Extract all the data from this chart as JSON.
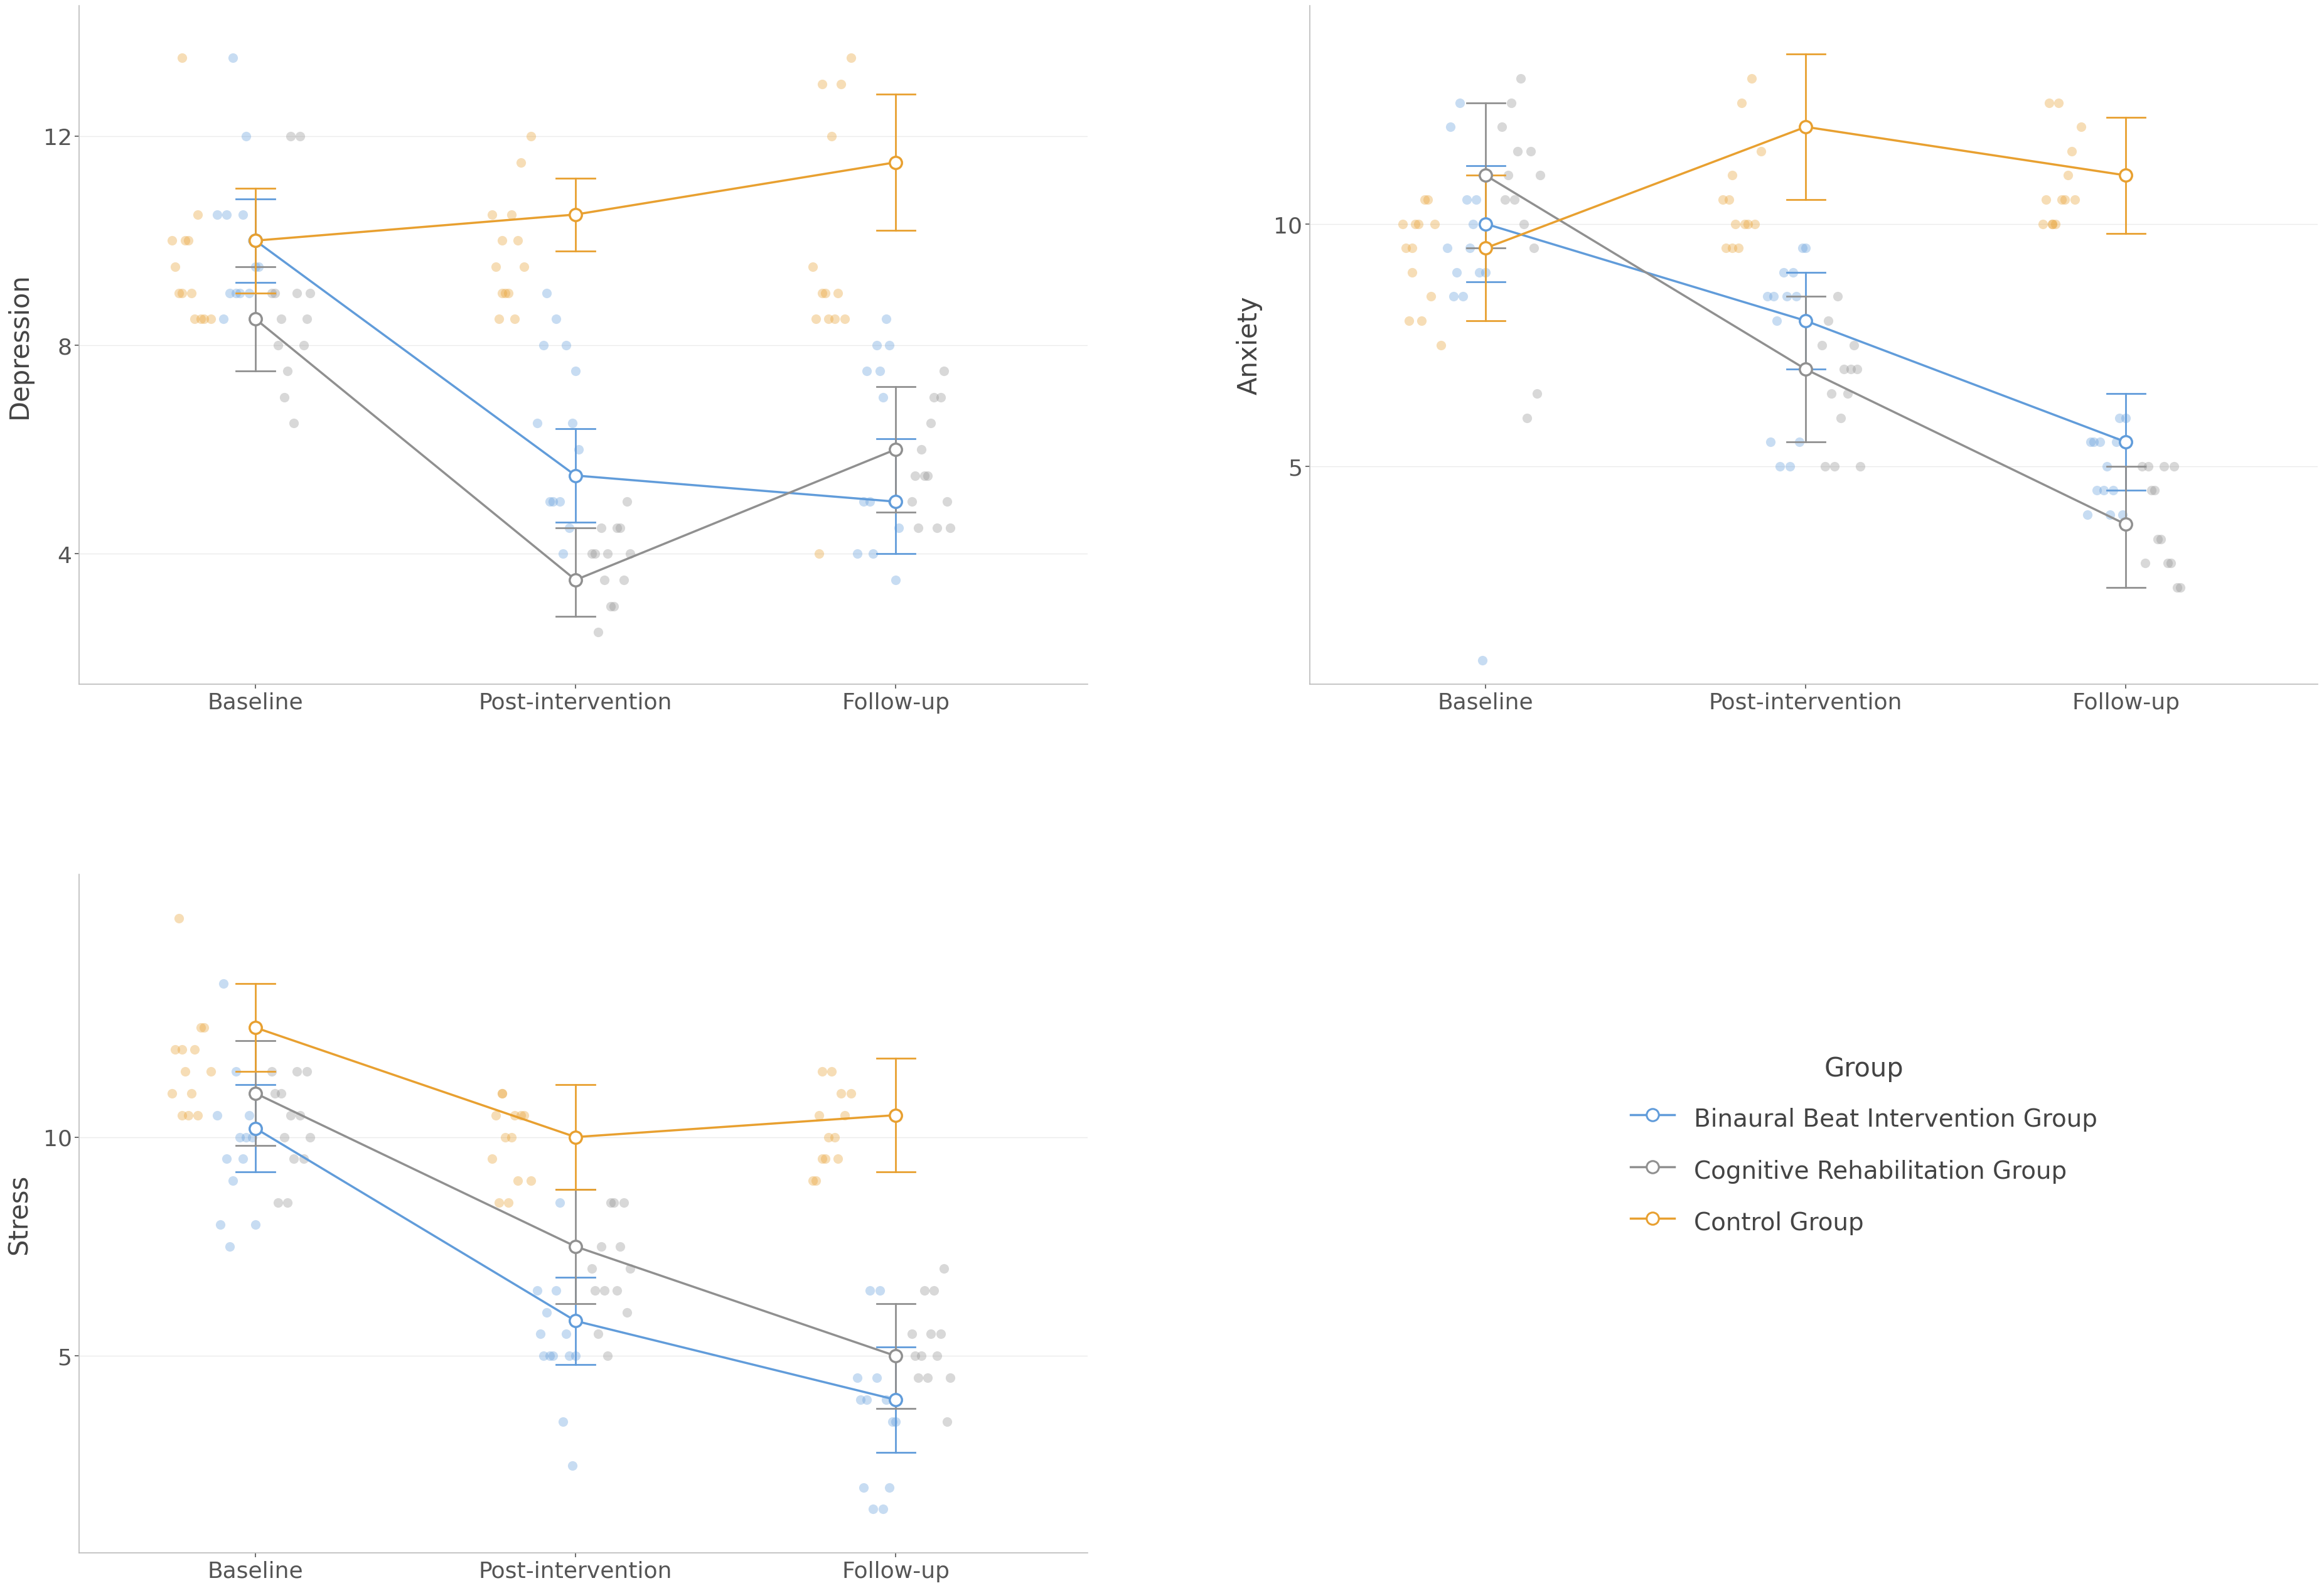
{
  "subplots": [
    {
      "title": "Depression",
      "ylabel": "Depression",
      "ylim": [
        1.5,
        14.5
      ],
      "yticks": [
        4,
        8,
        12
      ],
      "groups": {
        "blue": {
          "means": [
            10.0,
            5.5,
            5.0
          ],
          "ci_low": [
            9.2,
            4.6,
            4.0
          ],
          "ci_high": [
            10.8,
            6.4,
            6.2
          ],
          "jitter_x": [
            [
              0.88,
              0.92,
              0.95,
              0.98,
              1.01,
              0.9,
              0.94,
              0.97,
              1.0,
              0.91,
              0.96,
              0.93,
              0.99
            ],
            [
              1.88,
              1.92,
              1.95,
              1.98,
              2.01,
              1.9,
              1.94,
              1.97,
              2.0,
              1.91,
              1.96,
              1.93,
              1.99
            ],
            [
              2.88,
              2.92,
              2.95,
              2.98,
              3.01,
              2.9,
              2.94,
              2.97,
              3.0,
              2.91,
              2.96,
              2.93,
              2.99
            ]
          ],
          "jitter_y": [
            [
              10.5,
              9.0,
              9.0,
              9.0,
              9.5,
              8.5,
              9.0,
              12.0,
              9.5,
              10.5,
              10.5,
              13.5,
              10.0
            ],
            [
              6.5,
              5.0,
              5.0,
              4.5,
              6.0,
              8.0,
              8.5,
              8.0,
              7.5,
              9.0,
              4.0,
              5.0,
              6.5
            ],
            [
              4.0,
              5.0,
              7.5,
              8.0,
              4.5,
              5.0,
              8.0,
              8.5,
              3.5,
              7.5,
              7.0,
              4.0,
              5.0
            ]
          ]
        },
        "gray": {
          "means": [
            8.5,
            3.5,
            6.0
          ],
          "ci_low": [
            7.5,
            2.8,
            4.8
          ],
          "ci_high": [
            9.5,
            4.5,
            7.2
          ],
          "jitter_x": [
            [
              1.05,
              1.08,
              1.11,
              1.14,
              1.17,
              1.06,
              1.09,
              1.12,
              1.15,
              1.07,
              1.1,
              1.13,
              1.16
            ],
            [
              2.05,
              2.08,
              2.11,
              2.14,
              2.17,
              2.06,
              2.09,
              2.12,
              2.15,
              2.07,
              2.1,
              2.13,
              2.16
            ],
            [
              3.05,
              3.08,
              3.11,
              3.14,
              3.17,
              3.06,
              3.09,
              3.12,
              3.15,
              3.07,
              3.1,
              3.13,
              3.16
            ]
          ],
          "jitter_y": [
            [
              9.0,
              8.5,
              12.0,
              12.0,
              9.0,
              9.0,
              7.0,
              6.5,
              8.0,
              8.0,
              7.5,
              9.0,
              8.5
            ],
            [
              4.0,
              4.5,
              3.0,
              4.5,
              4.0,
              4.0,
              3.5,
              3.0,
              3.5,
              2.5,
              4.0,
              4.5,
              5.0
            ],
            [
              5.0,
              6.0,
              6.5,
              7.0,
              4.5,
              5.5,
              5.5,
              7.0,
              7.5,
              4.5,
              5.5,
              4.5,
              5.0
            ]
          ]
        },
        "orange": {
          "means": [
            10.0,
            10.5,
            11.5
          ],
          "ci_low": [
            9.0,
            9.8,
            10.2
          ],
          "ci_high": [
            11.0,
            11.2,
            12.8
          ],
          "jitter_x": [
            [
              0.75,
              0.78,
              0.81,
              0.84,
              0.77,
              0.8,
              0.83,
              0.86,
              0.76,
              0.79,
              0.82,
              0.74,
              0.77
            ],
            [
              1.75,
              1.78,
              1.81,
              1.84,
              1.77,
              1.8,
              1.83,
              1.86,
              1.76,
              1.79,
              1.82,
              1.74,
              1.77
            ],
            [
              2.75,
              2.78,
              2.81,
              2.84,
              2.77,
              2.8,
              2.83,
              2.86,
              2.76,
              2.79,
              2.82,
              2.74,
              2.77
            ]
          ],
          "jitter_y": [
            [
              9.5,
              10.0,
              8.5,
              8.5,
              9.0,
              9.0,
              8.5,
              8.5,
              9.0,
              10.0,
              10.5,
              10.0,
              13.5
            ],
            [
              9.5,
              9.0,
              8.5,
              9.5,
              10.0,
              10.5,
              11.5,
              12.0,
              8.5,
              9.0,
              10.0,
              10.5,
              9.0
            ],
            [
              8.5,
              9.0,
              8.5,
              8.5,
              9.0,
              12.0,
              13.0,
              13.5,
              4.0,
              8.5,
              9.0,
              9.5,
              13.0
            ]
          ]
        }
      }
    },
    {
      "title": "Anxiety",
      "ylabel": "Anxiety",
      "ylim": [
        0.5,
        14.5
      ],
      "yticks": [
        5,
        10
      ],
      "groups": {
        "blue": {
          "means": [
            10.0,
            8.0,
            5.5
          ],
          "ci_low": [
            8.8,
            7.0,
            4.5
          ],
          "ci_high": [
            11.2,
            9.0,
            6.5
          ],
          "jitter_x": [
            [
              0.88,
              0.91,
              0.94,
              0.97,
              1.0,
              0.89,
              0.92,
              0.95,
              0.98,
              0.9,
              0.93,
              0.96,
              0.99
            ],
            [
              1.88,
              1.91,
              1.94,
              1.97,
              2.0,
              1.89,
              1.92,
              1.95,
              1.98,
              1.9,
              1.93,
              1.96,
              1.99
            ],
            [
              2.88,
              2.91,
              2.94,
              2.97,
              3.0,
              2.89,
              2.92,
              2.95,
              2.98,
              2.9,
              2.93,
              2.96,
              2.99
            ]
          ],
          "jitter_y": [
            [
              9.5,
              9.0,
              10.5,
              10.5,
              9.0,
              12.0,
              12.5,
              9.5,
              9.0,
              8.5,
              8.5,
              10.0,
              1.0
            ],
            [
              8.5,
              8.0,
              8.5,
              8.5,
              9.5,
              5.5,
              5.0,
              5.0,
              5.5,
              8.5,
              9.0,
              9.0,
              9.5
            ],
            [
              4.0,
              4.5,
              5.0,
              5.5,
              6.0,
              5.5,
              5.5,
              4.0,
              6.0,
              5.5,
              4.5,
              4.5,
              4.0
            ]
          ]
        },
        "gray": {
          "means": [
            11.0,
            7.0,
            3.8
          ],
          "ci_low": [
            9.5,
            5.5,
            2.5
          ],
          "ci_high": [
            12.5,
            8.5,
            5.0
          ],
          "jitter_x": [
            [
              1.05,
              1.08,
              1.11,
              1.14,
              1.17,
              1.06,
              1.09,
              1.12,
              1.15,
              1.07,
              1.1,
              1.13,
              1.16
            ],
            [
              2.05,
              2.08,
              2.11,
              2.14,
              2.17,
              2.06,
              2.09,
              2.12,
              2.15,
              2.07,
              2.1,
              2.13,
              2.16
            ],
            [
              3.05,
              3.08,
              3.11,
              3.14,
              3.17,
              3.06,
              3.09,
              3.12,
              3.15,
              3.07,
              3.1,
              3.13,
              3.16
            ]
          ],
          "jitter_y": [
            [
              12.0,
              12.5,
              13.0,
              11.5,
              11.0,
              10.5,
              10.5,
              10.0,
              9.5,
              11.0,
              11.5,
              6.0,
              6.5
            ],
            [
              7.5,
              6.5,
              6.0,
              7.0,
              5.0,
              5.0,
              5.0,
              7.0,
              7.5,
              8.0,
              8.5,
              6.5,
              7.0
            ],
            [
              5.0,
              4.5,
              3.5,
              3.0,
              2.5,
              3.0,
              4.5,
              5.0,
              5.0,
              5.0,
              3.5,
              3.0,
              2.5
            ]
          ]
        },
        "orange": {
          "means": [
            9.5,
            12.0,
            11.0
          ],
          "ci_low": [
            8.0,
            10.5,
            9.8
          ],
          "ci_high": [
            11.0,
            13.5,
            12.2
          ],
          "jitter_x": [
            [
              0.75,
              0.78,
              0.81,
              0.84,
              0.77,
              0.8,
              0.83,
              0.86,
              0.76,
              0.79,
              0.82,
              0.74,
              0.77
            ],
            [
              1.75,
              1.78,
              1.81,
              1.84,
              1.77,
              1.8,
              1.83,
              1.86,
              1.76,
              1.79,
              1.82,
              1.74,
              1.77
            ],
            [
              2.75,
              2.78,
              2.81,
              2.84,
              2.77,
              2.8,
              2.83,
              2.86,
              2.76,
              2.79,
              2.82,
              2.74,
              2.77
            ]
          ],
          "jitter_y": [
            [
              9.5,
              10.0,
              10.5,
              10.0,
              9.5,
              8.0,
              8.5,
              7.5,
              8.0,
              10.0,
              10.5,
              10.0,
              9.0
            ],
            [
              9.5,
              10.0,
              10.0,
              10.0,
              11.0,
              12.5,
              13.0,
              11.5,
              10.5,
              9.5,
              10.0,
              10.5,
              9.5
            ],
            [
              10.5,
              10.0,
              10.5,
              10.5,
              10.0,
              10.5,
              11.5,
              12.0,
              12.5,
              12.5,
              11.0,
              10.0,
              10.0
            ]
          ]
        }
      }
    },
    {
      "title": "Stress",
      "ylabel": "Stress",
      "ylim": [
        0.5,
        16.0
      ],
      "yticks": [
        5,
        10
      ],
      "groups": {
        "blue": {
          "means": [
            10.2,
            5.8,
            4.0
          ],
          "ci_low": [
            9.2,
            4.8,
            2.8
          ],
          "ci_high": [
            11.2,
            6.8,
            5.2
          ],
          "jitter_x": [
            [
              0.88,
              0.91,
              0.94,
              0.97,
              1.0,
              0.89,
              0.92,
              0.95,
              0.98,
              0.9,
              0.93,
              0.96,
              0.99
            ],
            [
              1.88,
              1.91,
              1.94,
              1.97,
              2.0,
              1.89,
              1.92,
              1.95,
              1.98,
              1.9,
              1.93,
              1.96,
              1.99
            ],
            [
              2.88,
              2.91,
              2.94,
              2.97,
              3.0,
              2.89,
              2.92,
              2.95,
              2.98,
              2.9,
              2.93,
              2.96,
              2.99
            ]
          ],
          "jitter_y": [
            [
              10.5,
              9.5,
              11.5,
              10.0,
              8.0,
              8.0,
              7.5,
              10.0,
              10.5,
              13.5,
              9.0,
              9.5,
              10.0
            ],
            [
              6.5,
              6.0,
              6.5,
              5.5,
              5.0,
              5.5,
              5.0,
              8.5,
              5.0,
              5.0,
              5.0,
              3.5,
              2.5
            ],
            [
              4.5,
              4.0,
              4.5,
              4.0,
              3.5,
              4.0,
              6.5,
              6.5,
              2.0,
              2.0,
              1.5,
              1.5,
              3.5
            ]
          ]
        },
        "gray": {
          "means": [
            11.0,
            7.5,
            5.0
          ],
          "ci_low": [
            9.8,
            6.2,
            3.8
          ],
          "ci_high": [
            12.2,
            8.8,
            6.2
          ],
          "jitter_x": [
            [
              1.05,
              1.08,
              1.11,
              1.14,
              1.17,
              1.06,
              1.09,
              1.12,
              1.15,
              1.07,
              1.1,
              1.13,
              1.16
            ],
            [
              2.05,
              2.08,
              2.11,
              2.14,
              2.17,
              2.06,
              2.09,
              2.12,
              2.15,
              2.07,
              2.1,
              2.13,
              2.16
            ],
            [
              3.05,
              3.08,
              3.11,
              3.14,
              3.17,
              3.06,
              3.09,
              3.12,
              3.15,
              3.07,
              3.1,
              3.13,
              3.16
            ]
          ],
          "jitter_y": [
            [
              11.5,
              11.0,
              10.5,
              10.5,
              10.0,
              11.0,
              10.0,
              9.5,
              9.5,
              8.5,
              8.5,
              11.5,
              11.5
            ],
            [
              7.0,
              7.5,
              8.5,
              7.5,
              7.0,
              6.5,
              6.5,
              8.5,
              8.5,
              5.5,
              5.0,
              6.5,
              6.0
            ],
            [
              5.5,
              5.0,
              5.5,
              5.5,
              4.5,
              5.0,
              6.5,
              6.5,
              7.0,
              4.5,
              4.5,
              5.0,
              3.5
            ]
          ]
        },
        "orange": {
          "means": [
            12.5,
            10.0,
            10.5
          ],
          "ci_low": [
            11.5,
            8.8,
            9.2
          ],
          "ci_high": [
            13.5,
            11.2,
            11.8
          ],
          "jitter_x": [
            [
              0.75,
              0.78,
              0.81,
              0.84,
              0.77,
              0.8,
              0.83,
              0.86,
              0.76,
              0.79,
              0.82,
              0.74,
              0.77
            ],
            [
              1.75,
              1.78,
              1.81,
              1.84,
              1.77,
              1.8,
              1.83,
              1.86,
              1.76,
              1.79,
              1.82,
              1.74,
              1.77
            ],
            [
              2.75,
              2.78,
              2.81,
              2.84,
              2.77,
              2.8,
              2.83,
              2.86,
              2.76,
              2.79,
              2.82,
              2.74,
              2.77
            ]
          ],
          "jitter_y": [
            [
              12.0,
              11.5,
              12.0,
              12.5,
              10.5,
              11.0,
              12.5,
              11.5,
              15.0,
              10.5,
              10.5,
              11.0,
              12.0
            ],
            [
              10.5,
              10.0,
              10.5,
              10.5,
              11.0,
              10.0,
              10.5,
              9.0,
              8.5,
              8.5,
              9.0,
              9.5,
              11.0
            ],
            [
              9.0,
              9.5,
              10.0,
              10.5,
              11.5,
              11.5,
              11.0,
              11.0,
              10.5,
              10.0,
              9.5,
              9.0,
              9.5
            ]
          ]
        }
      }
    }
  ],
  "x_positions": [
    1,
    2,
    3
  ],
  "xtick_labels": [
    "Baseline",
    "Post-intervention",
    "Follow-up"
  ],
  "colors": {
    "blue": "#619CDA",
    "gray": "#909090",
    "orange": "#E8A030"
  },
  "jitter_alpha": 0.35,
  "jitter_size": 120,
  "line_width": 2.5,
  "marker_size": 14,
  "error_lw": 2.0,
  "cap_size": 0.06,
  "legend_title": "Group",
  "legend_labels": [
    "Binaural Beat Intervention Group",
    "Cognitive Rehabilitation Group",
    "Control Group"
  ],
  "legend_marker_keys": [
    "blue",
    "gray",
    "orange"
  ],
  "fig_facecolor": "#FFFFFF",
  "axis_facecolor": "#FFFFFF",
  "fontsize_axis_label": 30,
  "fontsize_tick_label": 26,
  "fontsize_legend_title": 30,
  "fontsize_legend_text": 28
}
